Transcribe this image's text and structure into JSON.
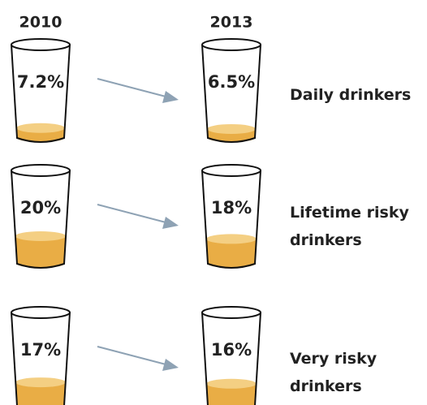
{
  "chart_data": {
    "type": "glasses",
    "categories": [
      "Daily drinkers",
      "Lifetime risky drinkers",
      "Very risky drinkers"
    ],
    "series": [
      {
        "name": "2010",
        "color": "#e9ad45",
        "values": [
          7.2,
          20,
          17
        ],
        "value_labels": [
          "7.2%",
          "20%",
          "17%"
        ]
      },
      {
        "name": "2013",
        "color": "#e9ad45",
        "values": [
          6.5,
          18,
          16
        ],
        "value_labels": [
          "6.5%",
          "18%",
          "16%"
        ]
      }
    ]
  }
}
